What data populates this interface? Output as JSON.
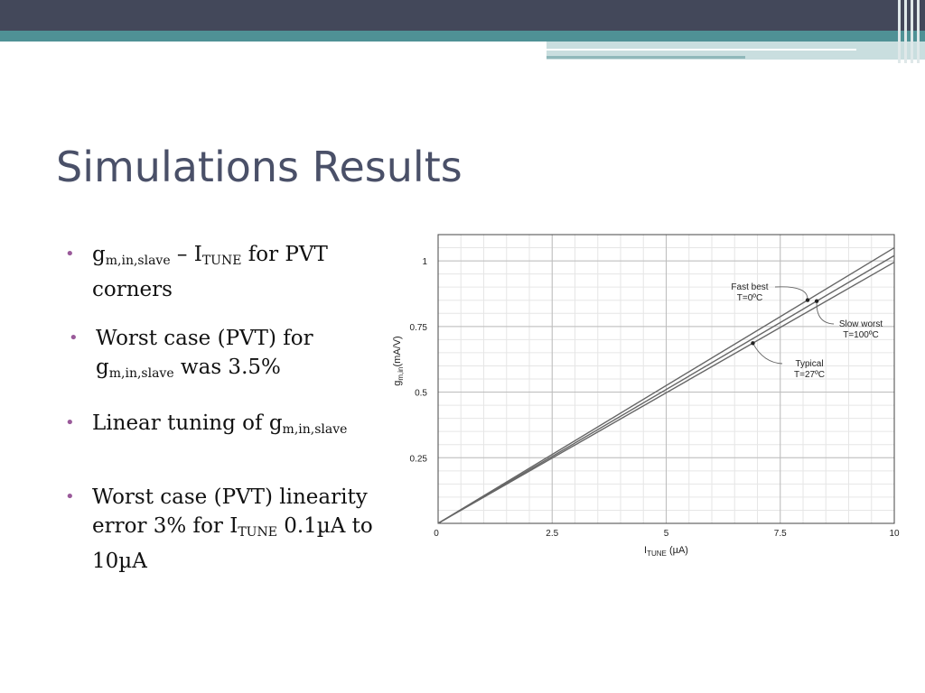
{
  "slide": {
    "title": "Simulations Results",
    "bullets": [
      {
        "parts": [
          {
            "t": "g"
          },
          {
            "sub": "m,in,slave"
          },
          {
            "t": " – I"
          },
          {
            "sub": "TUNE"
          },
          {
            "t": " for PVT corners"
          }
        ]
      },
      {
        "parts": [
          {
            "t": "Worst case (PVT) for g"
          },
          {
            "sub": "m,in,slave"
          },
          {
            "t": " was  3.5%"
          }
        ]
      },
      {
        "parts": [
          {
            "t": "Linear tuning of g"
          },
          {
            "sub": "m,in,slave"
          }
        ]
      },
      {
        "parts": [
          {
            "t": "Worst case (PVT) linearity error 3% for I"
          },
          {
            "sub": "TUNE"
          },
          {
            "t": " 0.1µA to 10µA"
          }
        ]
      }
    ]
  },
  "chart_data": {
    "type": "line",
    "xlabel": {
      "main": "I",
      "sub": "TUNE",
      "unit": " (µA)"
    },
    "ylabel": {
      "main": "g",
      "sub": "m,in",
      "unit": "(mA/V)"
    },
    "xlim": [
      0,
      10
    ],
    "ylim": [
      0,
      1.1
    ],
    "x_ticks": [
      0,
      2.5,
      5,
      7.5,
      10
    ],
    "x_tick_labels": [
      "0",
      "2.5",
      "5",
      "7.5",
      "10"
    ],
    "y_ticks": [
      0.25,
      0.5,
      0.75,
      1
    ],
    "y_tick_labels": [
      "0.25",
      "0.5",
      "0.75",
      "1"
    ],
    "grid": true,
    "series": [
      {
        "name": "Fast best",
        "x": [
          0,
          10
        ],
        "y": [
          0,
          1.05
        ]
      },
      {
        "name": "Slow worst",
        "x": [
          0,
          10
        ],
        "y": [
          0,
          1.02
        ]
      },
      {
        "name": "Typical",
        "x": [
          0,
          10
        ],
        "y": [
          0,
          0.995
        ]
      }
    ],
    "annotations": [
      {
        "line1": "Fast best",
        "line2": "T=0ºC",
        "series": "Fast best",
        "point_x": 8.1
      },
      {
        "line1": "Slow worst",
        "line2": "T=100ºC",
        "series": "Slow worst",
        "point_x": 8.3
      },
      {
        "line1": "Typical",
        "line2": "T=27ºC",
        "series": "Typical",
        "point_x": 6.9
      }
    ]
  }
}
